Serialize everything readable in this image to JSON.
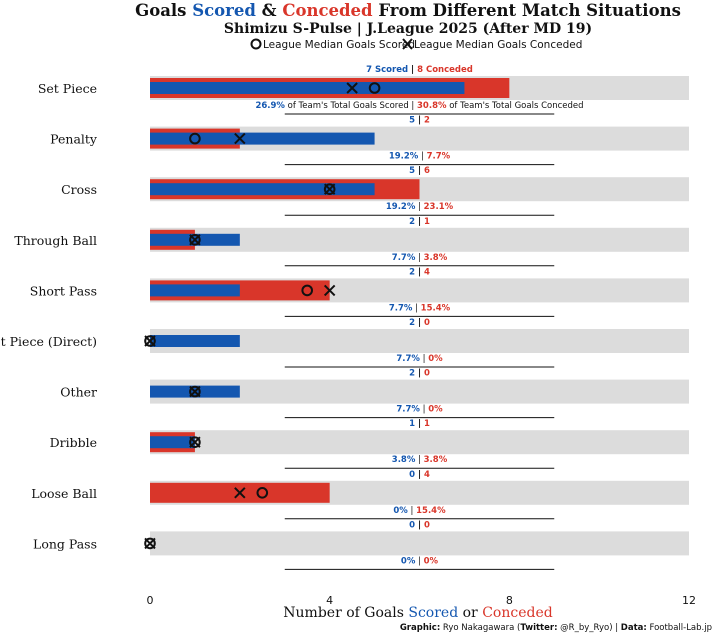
{
  "title": {
    "prefix": "Goals ",
    "scored_word": "Scored",
    "mid": " & ",
    "conceded_word": "Conceded",
    "suffix": " From Different Match Situations"
  },
  "subtitle": "Shimizu S-Pulse | J.League 2025 (After MD 19)",
  "legend": {
    "median_scored": "League Median Goals Scored",
    "median_conceded": "League Median Goals Conceded"
  },
  "annotation_words": {
    "scored": "Scored",
    "conceded": "Conceded",
    "of_scored": "of Team's Total Goals Scored",
    "of_conceded": "of Team's Total Goals Conceded"
  },
  "xaxis": {
    "label_prefix": "Number of Goals ",
    "label_scored": "Scored",
    "label_or": " or ",
    "label_conceded": "Conceded",
    "ticks": [
      "0",
      "4",
      "8",
      "12"
    ]
  },
  "caption": {
    "graphic_label": "Graphic:",
    "graphic_value": " Ryo Nakagawara (",
    "twitter_label": "Twitter:",
    "twitter_value": " @R_by_Ryo) | ",
    "data_label": "Data:",
    "data_value": " Football-Lab.jp"
  },
  "colors": {
    "scored": "#1457b0",
    "conceded": "#d9362a",
    "background_bar": "#dcdcdc"
  },
  "chart_data": {
    "type": "bar",
    "orientation": "horizontal",
    "xlim": [
      0,
      12
    ],
    "categories": [
      "Set Piece",
      "Penalty",
      "Cross",
      "Through Ball",
      "Short Pass",
      "Set Piece (Direct)",
      "Other",
      "Dribble",
      "Loose Ball",
      "Long Pass"
    ],
    "series": [
      {
        "name": "Scored",
        "values": [
          7,
          5,
          5,
          2,
          2,
          2,
          2,
          1,
          0,
          0
        ]
      },
      {
        "name": "Conceded",
        "values": [
          8,
          2,
          6,
          1,
          4,
          0,
          0,
          1,
          4,
          0
        ]
      }
    ],
    "league_median_scored": [
      5,
      1,
      4,
      1,
      3.5,
      0,
      1,
      1,
      2.5,
      0
    ],
    "league_median_conceded": [
      4.5,
      2,
      4,
      1,
      4,
      0,
      1,
      1,
      2,
      0
    ],
    "pct_scored": [
      "26.9%",
      "19.2%",
      "19.2%",
      "7.7%",
      "7.7%",
      "7.7%",
      "7.7%",
      "3.8%",
      "0%",
      "0%"
    ],
    "pct_conceded": [
      "30.8%",
      "7.7%",
      "23.1%",
      "3.8%",
      "15.4%",
      "0%",
      "0%",
      "3.8%",
      "15.4%",
      "0%"
    ],
    "max_value": 12
  }
}
